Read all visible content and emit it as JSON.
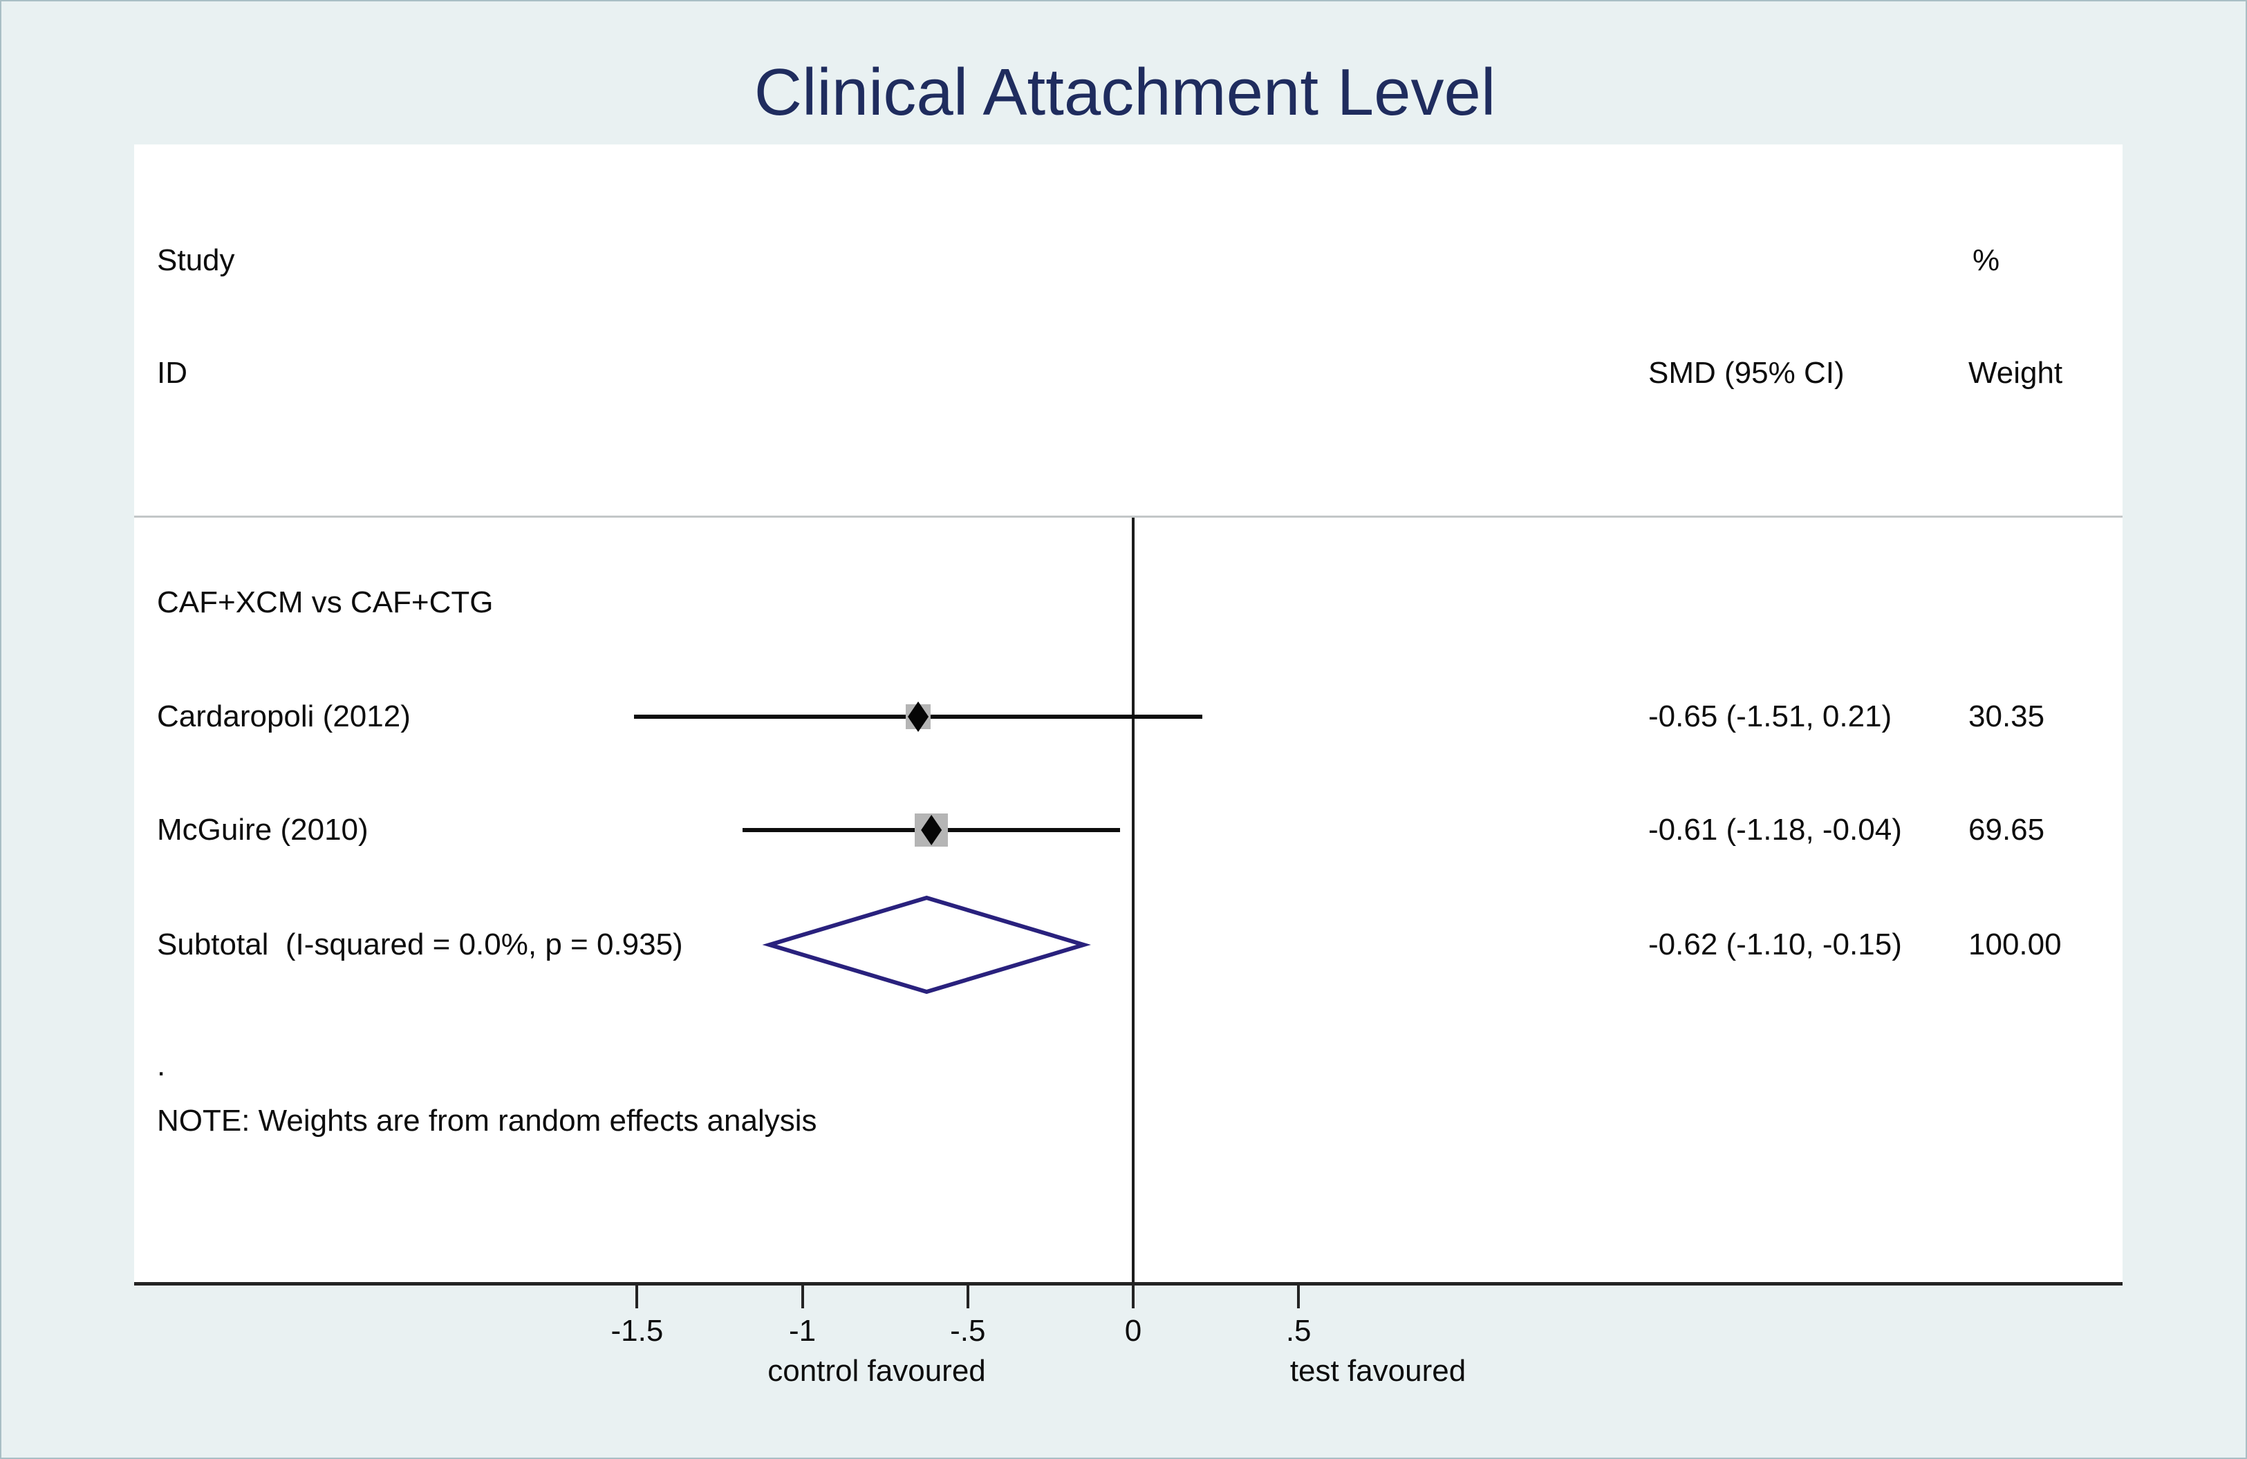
{
  "title": "Clinical Attachment Level",
  "headers": {
    "study": "Study",
    "id": "ID",
    "percent": "%",
    "smd": "SMD (95% CI)",
    "weight": "Weight"
  },
  "group_label": "CAF+XCM vs CAF+CTG",
  "dot_row": ".",
  "note": "NOTE: Weights are from random effects analysis",
  "colors": {
    "background": "#e9f1f2",
    "plot_background": "#ffffff",
    "title_text": "#1f2c5e",
    "body_text": "#0d0d0d",
    "diamond_outline": "#29217d",
    "weight_square": "#b5b5b5",
    "ci_line": "#0d0d0d",
    "divider_line": "#c3c7c8",
    "axis_line": "#242424"
  },
  "chart_data": {
    "type": "scatter",
    "subtype": "forest_plot",
    "title": "Clinical Attachment Level",
    "group": "CAF+XCM vs CAF+CTG",
    "studies": [
      {
        "label": "Cardaropoli (2012)",
        "smd": -0.65,
        "ci_lower": -1.51,
        "ci_upper": 0.21,
        "smd_text": "-0.65 (-1.51, 0.21)",
        "weight": 30.35,
        "weight_text": "30.35"
      },
      {
        "label": "McGuire (2010)",
        "smd": -0.61,
        "ci_lower": -1.18,
        "ci_upper": -0.04,
        "smd_text": "-0.61 (-1.18, -0.04)",
        "weight": 69.65,
        "weight_text": "69.65"
      }
    ],
    "subtotal": {
      "label": "Subtotal  (I-squared = 0.0%, p = 0.935)",
      "smd": -0.62,
      "ci_lower": -1.1,
      "ci_upper": -0.15,
      "smd_text": "-0.62 (-1.10, -0.15)",
      "weight": 100.0,
      "weight_text": "100.00"
    },
    "axis": {
      "tick_values": [
        -1.5,
        -1,
        -0.5,
        0,
        0.5
      ],
      "tick_labels": [
        "-1.5",
        "-1",
        "-.5",
        "0",
        ".5"
      ],
      "zero_reference_line": true,
      "left_note": "control favoured",
      "right_note": "test favoured"
    },
    "note": "NOTE: Weights are from random effects analysis",
    "legend_position": "none",
    "grid": false
  }
}
